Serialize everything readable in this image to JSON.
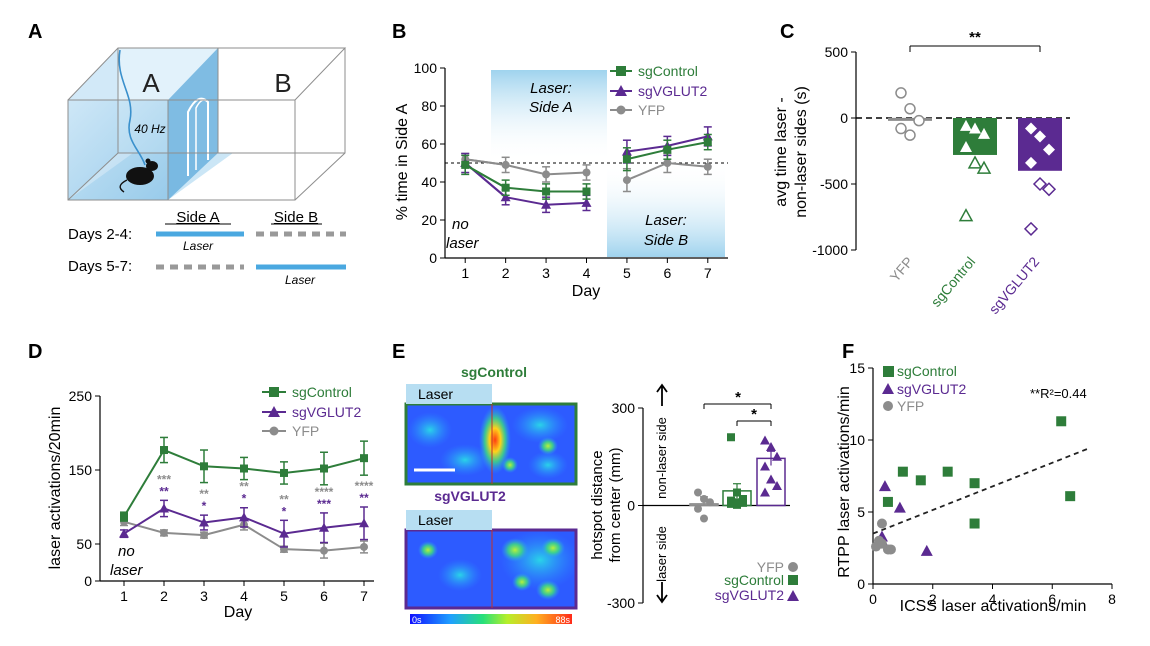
{
  "colors": {
    "sgControl": "#2e7d3a",
    "sgVGLUT2": "#5b2a91",
    "YFP": "#8c8c8c",
    "laser_blue": "#4aa8e0",
    "laser_box": "#b7def2"
  },
  "panel_labels": {
    "A": "A",
    "B": "B",
    "C": "C",
    "D": "D",
    "E": "E",
    "F": "F"
  },
  "panel_a": {
    "chamber_a": "A",
    "chamber_b": "B",
    "freq": "40 Hz",
    "side_a": "Side A",
    "side_b": "Side B",
    "row1": "Days 2-4:",
    "row2": "Days 5-7:",
    "laser1": "Laser",
    "laser2": "Laser"
  },
  "panel_b": {
    "ylabel": "% time in Side A",
    "xlabel": "Day",
    "box1_line1": "Laser:",
    "box1_line2": "Side A",
    "box2_line1": "Laser:",
    "box2_line2": "Side B",
    "no": "no",
    "laser": "laser",
    "legend": {
      "sgControl": "sgControl",
      "sgVGLUT2": "sgVGLUT2",
      "YFP": "YFP"
    }
  },
  "panel_c": {
    "ylabel1": "avg time laser -",
    "ylabel2": "non-laser sides (s)",
    "sig": "**",
    "xlabels": {
      "YFP": "YFP",
      "sgControl": "sgControl",
      "sgVGLUT2": "sgVGLUT2"
    }
  },
  "panel_d": {
    "ylabel": "laser activations/20min",
    "xlabel": "Day",
    "no": "no",
    "laser": "laser",
    "legend": {
      "sgControl": "sgControl",
      "sgVGLUT2": "sgVGLUT2",
      "YFP": "YFP"
    },
    "sig_yfp": {
      "d2": "***",
      "d3": "**",
      "d4": "**",
      "d5": "**",
      "d6": "****",
      "d7": "****"
    },
    "sig_vglut": {
      "d2": "**",
      "d3": "*",
      "d4": "*",
      "d5": "*",
      "d6": "***",
      "d7": "**"
    }
  },
  "panel_e": {
    "title_control": "sgControl",
    "title_vglut": "sgVGLUT2",
    "laser_tag1": "Laser",
    "laser_tag2": "Laser",
    "cbar_min": "0s",
    "cbar_max": "88s",
    "ylabel1": "hotspot distance",
    "ylabel2": "from center (mm)",
    "non_laser_side": "non-laser side",
    "laser_side": "laser side",
    "sig1": "*",
    "sig2": "*",
    "legend": {
      "YFP": "YFP",
      "sgControl": "sgControl",
      "sgVGLUT2": "sgVGLUT2"
    }
  },
  "panel_f": {
    "ylabel": "RTPP laser activations/min",
    "xlabel": "ICSS laser activations/min",
    "r2": "**R²=0.44",
    "legend": {
      "sgControl": "sgControl",
      "sgVGLUT2": "sgVGLUT2",
      "YFP": "YFP"
    }
  },
  "chart_data": [
    {
      "id": "B",
      "type": "line",
      "xlabel": "Day",
      "ylabel": "% time in Side A",
      "x": [
        1,
        2,
        3,
        4,
        5,
        6,
        7
      ],
      "xlim": [
        0.5,
        7.5
      ],
      "ylim": [
        0,
        100
      ],
      "yticks": [
        0,
        20,
        40,
        60,
        80,
        100
      ],
      "ref_line": 50,
      "series": [
        {
          "name": "sgControl",
          "values": [
            49,
            37,
            35,
            35,
            52,
            57,
            61
          ],
          "err": [
            5,
            4,
            4,
            4,
            6,
            5,
            4
          ]
        },
        {
          "name": "sgVGLUT2",
          "values": [
            50,
            32,
            28,
            29,
            56,
            59,
            64
          ],
          "err": [
            5,
            4,
            4,
            4,
            6,
            5,
            5
          ]
        },
        {
          "name": "YFP",
          "values": [
            52,
            49,
            44,
            45,
            41,
            50,
            48
          ],
          "err": [
            3,
            4,
            4,
            4,
            6,
            5,
            4
          ]
        }
      ]
    },
    {
      "id": "C",
      "type": "bar",
      "ylabel": "avg time laser - non-laser sides (s)",
      "categories": [
        "YFP",
        "sgControl",
        "sgVGLUT2"
      ],
      "ylim": [
        -1000,
        500
      ],
      "yticks": [
        500,
        0,
        -500,
        -1000
      ],
      "values": [
        -10,
        -280,
        -400
      ],
      "points": [
        [
          190,
          70,
          -20,
          -80,
          -130
        ],
        [
          -60,
          -80,
          -120,
          -220,
          -340,
          -380,
          -740
        ],
        [
          -80,
          -140,
          -240,
          -340,
          -500,
          -540,
          -840
        ]
      ]
    },
    {
      "id": "D",
      "type": "line",
      "xlabel": "Day",
      "ylabel": "laser activations/20min",
      "x": [
        1,
        2,
        3,
        4,
        5,
        6,
        7
      ],
      "ylim": [
        0,
        250
      ],
      "yticks": [
        0,
        50,
        150,
        250
      ],
      "series": [
        {
          "name": "sgControl",
          "values": [
            87,
            177,
            155,
            152,
            146,
            152,
            166
          ],
          "err": [
            6,
            17,
            22,
            15,
            15,
            22,
            23
          ]
        },
        {
          "name": "sgVGLUT2",
          "values": [
            64,
            98,
            79,
            86,
            64,
            72,
            78
          ],
          "err": [
            5,
            11,
            10,
            13,
            18,
            20,
            22
          ]
        },
        {
          "name": "YFP",
          "values": [
            80,
            65,
            62,
            76,
            43,
            41,
            46
          ],
          "err": [
            5,
            4,
            4,
            7,
            4,
            10,
            8
          ]
        }
      ]
    },
    {
      "id": "E",
      "type": "bar",
      "ylabel": "hotspot distance from center (mm)",
      "categories": [
        "YFP",
        "sgControl",
        "sgVGLUT2"
      ],
      "ylim": [
        -300,
        300
      ],
      "yticks": [
        300,
        0,
        -300
      ],
      "values": [
        5,
        45,
        145
      ],
      "points": [
        [
          40,
          20,
          10,
          -10,
          -40
        ],
        [
          210,
          40,
          20,
          15,
          10,
          8,
          5,
          2
        ],
        [
          200,
          180,
          150,
          120,
          80,
          60,
          40
        ]
      ]
    },
    {
      "id": "F",
      "type": "scatter",
      "xlabel": "ICSS laser activations/min",
      "ylabel": "RTPP laser activations/min",
      "xlim": [
        0,
        8
      ],
      "ylim": [
        0,
        15
      ],
      "xticks": [
        0,
        2,
        4,
        6,
        8
      ],
      "yticks": [
        0,
        5,
        10,
        15
      ],
      "r2": 0.44,
      "trend": {
        "x1": 0,
        "y1": 3.5,
        "x2": 7.2,
        "y2": 9.4
      },
      "series": [
        {
          "name": "sgControl",
          "points": [
            [
              0.5,
              5.7
            ],
            [
              1.0,
              7.8
            ],
            [
              1.6,
              7.2
            ],
            [
              2.5,
              7.8
            ],
            [
              3.4,
              7.0
            ],
            [
              3.4,
              4.2
            ],
            [
              6.3,
              11.3
            ],
            [
              6.6,
              6.1
            ]
          ]
        },
        {
          "name": "sgVGLUT2",
          "points": [
            [
              0.3,
              3.0
            ],
            [
              0.4,
              6.8
            ],
            [
              0.9,
              5.3
            ],
            [
              1.8,
              2.3
            ],
            [
              0.3,
              3.3
            ]
          ]
        },
        {
          "name": "YFP",
          "points": [
            [
              0.1,
              2.6
            ],
            [
              0.2,
              3.0
            ],
            [
              0.3,
              4.2
            ],
            [
              0.5,
              2.4
            ],
            [
              0.6,
              2.4
            ],
            [
              0.3,
              2.8
            ]
          ]
        }
      ]
    }
  ]
}
